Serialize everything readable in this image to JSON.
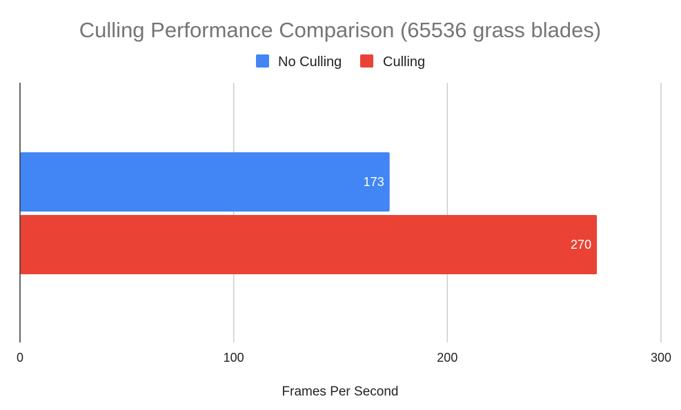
{
  "chart_data": {
    "type": "bar",
    "orientation": "horizontal",
    "title": "Culling Performance Comparison (65536 grass blades)",
    "xlabel": "Frames Per Second",
    "ylabel": "",
    "xlim": [
      0,
      300
    ],
    "xticks": [
      0,
      100,
      200,
      300
    ],
    "xtick_labels": [
      "0",
      "100",
      "200",
      "300"
    ],
    "grid": true,
    "legend_position": "top-center",
    "series": [
      {
        "name": "No Culling",
        "value": 173,
        "label": "173",
        "color": "#4285F4"
      },
      {
        "name": "Culling",
        "value": 270,
        "label": "270",
        "color": "#EA4335"
      }
    ]
  }
}
